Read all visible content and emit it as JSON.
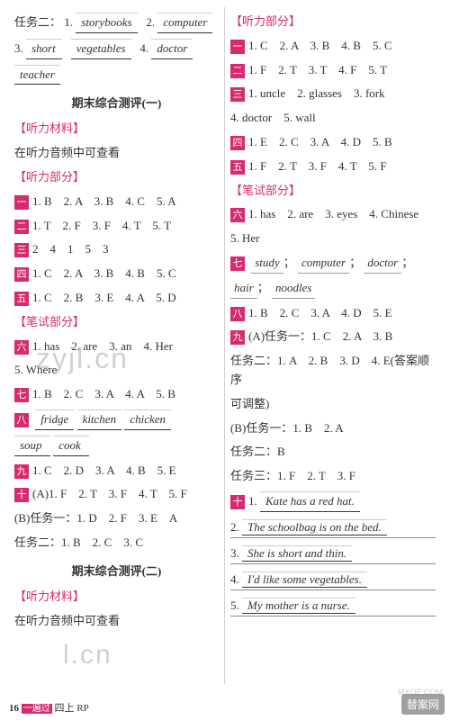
{
  "left": {
    "task2_label": "任务二：",
    "task2_items": [
      {
        "n": "1.",
        "w": "storybooks"
      },
      {
        "n": "2.",
        "w": "computer"
      },
      {
        "n": "3.",
        "w": "short"
      },
      {
        "n": "",
        "w": "vegetables"
      },
      {
        "n": "4.",
        "w": "doctor"
      },
      {
        "n": "",
        "w": "teacher"
      }
    ],
    "exam1_title": "期末综合测评(一)",
    "listen_mat": "【听力材料】",
    "listen_note": "在听力音频中可查看",
    "listen_part": "【听力部分】",
    "rows": {
      "r1": "1. B　2. A　3. B　4. C　5. A",
      "r2": "1. T　2. F　3. F　4. T　5. T",
      "r3": "2　4　1　5　3",
      "r4": "1. C　2. A　3. B　4. B　5. C",
      "r5": "1. C　2. B　3. E　4. A　5. D"
    },
    "write_part": "【笔试部分】",
    "r6": "1. has　2. are　3. an　4. Her",
    "r6b": "5. Where",
    "r7": "1. B　2. C　3. A　4. A　5. B",
    "r8_words": [
      "fridge",
      "kitchen",
      "chicken",
      "soup",
      "cook"
    ],
    "r9": "1. C　2. D　3. A　4. B　5. E",
    "r10a": "(A)1. F　2. T　3. F　4. T　5. F",
    "r10b": "(B)任务一：1. D　2. F　3. E　A",
    "r10c": "任务二：1. B　2. C　3. C",
    "exam2_title": "期末综合测评(二)",
    "listen_mat2": "【听力材料】",
    "listen_note2": "在听力音频中可查看"
  },
  "right": {
    "listen_part": "【听力部分】",
    "r1": "1. C　2. A　3. B　4. B　5. C",
    "r2": "1. F　2. T　3. T　4. F　5. T",
    "r3a": "1. uncle　2. glasses　3. fork",
    "r3b": "4. doctor　5. wall",
    "r4": "1. E　2. C　3. A　4. D　5. B",
    "r5": "1. F　2. T　3. F　4. T　5. F",
    "write_part": "【笔试部分】",
    "r6a": "1. has　2. are　3. eyes　4. Chinese",
    "r6b": "5. Her",
    "r7_words": [
      "study",
      "computer",
      "doctor",
      "hair",
      "noodles"
    ],
    "r8": "1. B　2. C　3. A　4. D　5. E",
    "r9a": "(A)任务一：1. C　2. A　3. B",
    "r9b": "任务二：1. A　2. B　3. D　4. E(答案顺序",
    "r9c": "可调整)",
    "r9d": "(B)任务一：1. B　2. A",
    "r9e": "任务二：B",
    "r9f": "任务三：1. F　2. T　3. F",
    "r10_sentences": [
      "Kate has a red hat.",
      "The schoolbag is on the bed.",
      "She is short and thin.",
      "I'd like some vegetables.",
      "My mother is a nurse."
    ]
  },
  "boxes": {
    "b1": "一",
    "b2": "二",
    "b3": "三",
    "b4": "四",
    "b5": "五",
    "b6": "六",
    "b7": "七",
    "b8": "八",
    "b9": "九",
    "b10": "十"
  },
  "footer": {
    "page": "16",
    "brand": "一遍过",
    "suffix": " 四上 RP"
  },
  "watermarks": {
    "w1": "zyjl.cn",
    "w2": "l.cn",
    "corner": "替案网",
    "corner_sub": "MXQE.COM"
  },
  "colors": {
    "pink": "#d82a6e",
    "text": "#333333"
  }
}
